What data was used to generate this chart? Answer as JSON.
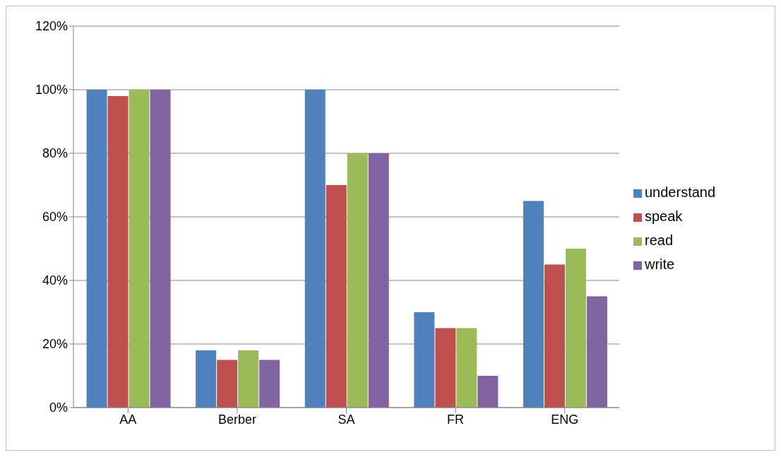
{
  "chart_data": {
    "type": "bar",
    "categories": [
      "AA",
      "Berber",
      "SA",
      "FR",
      "ENG"
    ],
    "series": [
      {
        "name": "understand",
        "color": "#4f81bd",
        "values": [
          100,
          18,
          100,
          30,
          65
        ]
      },
      {
        "name": "speak",
        "color": "#c0504d",
        "values": [
          98,
          15,
          70,
          25,
          45
        ]
      },
      {
        "name": "read",
        "color": "#9bbb59",
        "values": [
          100,
          18,
          80,
          25,
          50
        ]
      },
      {
        "name": "write",
        "color": "#8064a2",
        "values": [
          100,
          15,
          80,
          10,
          35
        ]
      }
    ],
    "ylim": [
      0,
      120
    ],
    "yticks": [
      {
        "value": 0,
        "label": "0%"
      },
      {
        "value": 20,
        "label": "20%"
      },
      {
        "value": 40,
        "label": "40%"
      },
      {
        "value": 60,
        "label": "60%"
      },
      {
        "value": 80,
        "label": "80%"
      },
      {
        "value": 100,
        "label": "100%"
      },
      {
        "value": 120,
        "label": "120%"
      }
    ],
    "grid": "y",
    "legend": "right"
  }
}
